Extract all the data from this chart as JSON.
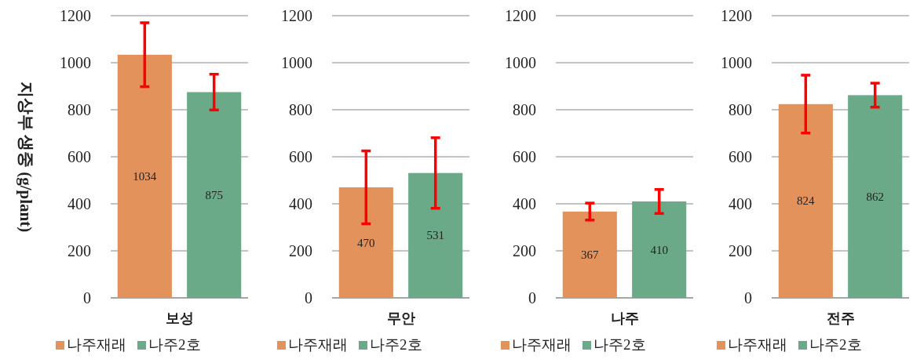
{
  "chart_data": [
    {
      "type": "bar",
      "ylabel": "지상부 생중 (g/plant)",
      "categories": [
        "보성"
      ],
      "ylim": [
        0,
        1200
      ],
      "yticks": [
        0,
        200,
        400,
        600,
        800,
        1000,
        1200
      ],
      "grid": "y",
      "legend": "bottom",
      "data_labels": true,
      "series": [
        {
          "name": "나주재래",
          "color": "#e2925a",
          "values": [
            1034
          ],
          "errors": [
            136
          ]
        },
        {
          "name": "나주2호",
          "color": "#6aaa88",
          "values": [
            875
          ],
          "errors": [
            76
          ]
        }
      ]
    },
    {
      "type": "bar",
      "categories": [
        "무안"
      ],
      "ylim": [
        0,
        1200
      ],
      "yticks": [
        0,
        200,
        400,
        600,
        800,
        1000,
        1200
      ],
      "grid": "y",
      "legend": "bottom",
      "data_labels": true,
      "series": [
        {
          "name": "나주재래",
          "color": "#e2925a",
          "values": [
            470
          ],
          "errors": [
            155
          ]
        },
        {
          "name": "나주2호",
          "color": "#6aaa88",
          "values": [
            531
          ],
          "errors": [
            150
          ]
        }
      ]
    },
    {
      "type": "bar",
      "categories": [
        "나주"
      ],
      "ylim": [
        0,
        1200
      ],
      "yticks": [
        0,
        200,
        400,
        600,
        800,
        1000,
        1200
      ],
      "grid": "y",
      "legend": "bottom",
      "data_labels": true,
      "series": [
        {
          "name": "나주재래",
          "color": "#e2925a",
          "values": [
            367
          ],
          "errors": [
            36
          ]
        },
        {
          "name": "나주2호",
          "color": "#6aaa88",
          "values": [
            410
          ],
          "errors": [
            51
          ]
        }
      ]
    },
    {
      "type": "bar",
      "categories": [
        "전주"
      ],
      "ylim": [
        0,
        1200
      ],
      "yticks": [
        0,
        200,
        400,
        600,
        800,
        1000,
        1200
      ],
      "grid": "y",
      "legend": "bottom",
      "data_labels": true,
      "series": [
        {
          "name": "나주재래",
          "color": "#e2925a",
          "values": [
            824
          ],
          "errors": [
            123
          ]
        },
        {
          "name": "나주2호",
          "color": "#6aaa88",
          "values": [
            862
          ],
          "errors": [
            51
          ]
        }
      ]
    }
  ]
}
